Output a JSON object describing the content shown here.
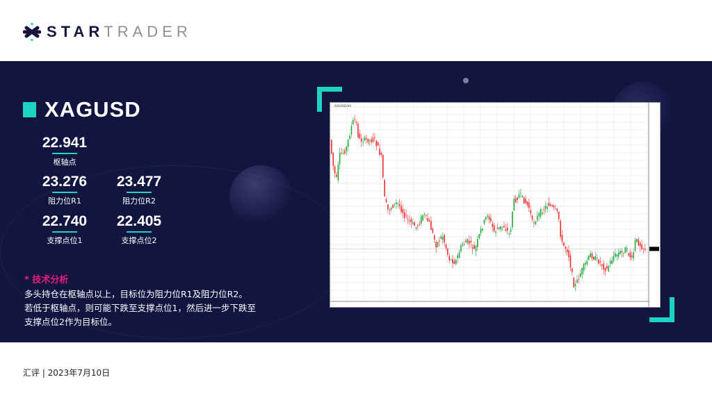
{
  "brand": {
    "name_bold": "STAR",
    "name_light": "TRADER"
  },
  "symbol": "XAGUSD",
  "levels": {
    "pivot": {
      "value": "22.941",
      "label": "枢轴点"
    },
    "r1": {
      "value": "23.276",
      "label": "阻力位R1"
    },
    "r2": {
      "value": "23.477",
      "label": "阻力位R2"
    },
    "s1": {
      "value": "22.740",
      "label": "支撑点位1"
    },
    "s2": {
      "value": "22.405",
      "label": "支撑点位2"
    }
  },
  "analysis": {
    "title": "* 技术分析",
    "lines": [
      "多头持仓在枢轴点以上，目标位为阻力位R1及阻力位R2。",
      "若低于枢轴点，则可能下跌至支撑点位1，然后进一步下跌至",
      "支撑点位2作为目标位。"
    ]
  },
  "chart_image": {
    "symbol_label": "XAGUSD,H4",
    "type": "candlestick",
    "up_color": "#1fa53a",
    "down_color": "#f02a2a"
  },
  "footer": "汇评 | 2023年7月10日",
  "colors": {
    "band": "#121540",
    "accent": "#1dd3c4",
    "highlight": "#e91e7a"
  }
}
